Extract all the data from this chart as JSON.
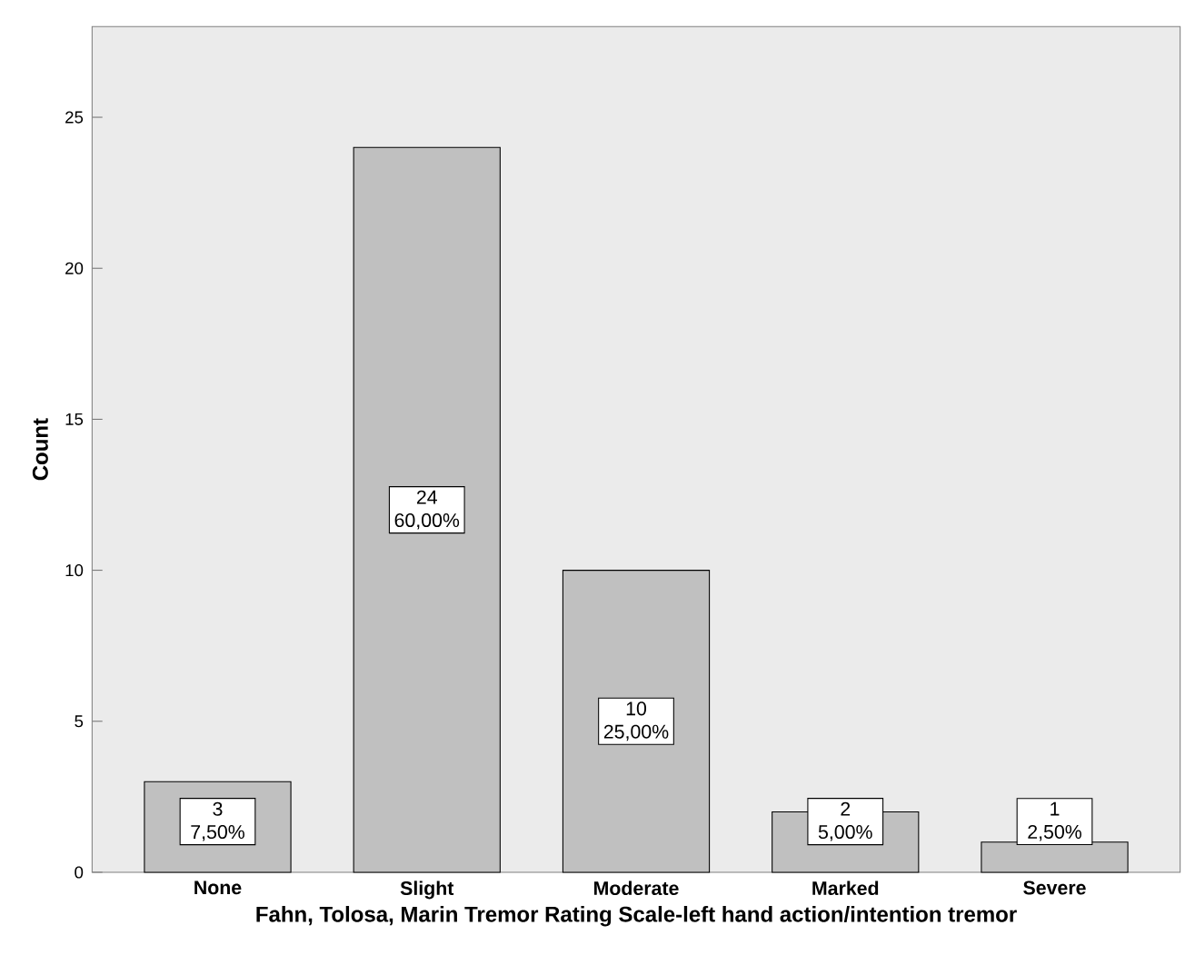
{
  "chart_data": {
    "type": "bar",
    "xlabel": "Fahn, Tolosa, Marin Tremor Rating Scale-left hand action/intention tremor",
    "ylabel": "Count",
    "categories": [
      "None",
      "Slight",
      "Moderate",
      "Marked",
      "Severe"
    ],
    "values": [
      3,
      24,
      10,
      2,
      1
    ],
    "value_labels": [
      "3 7,50%",
      "24 60,00%",
      "10 25,00%",
      "2 5,00%",
      "1 2,50%"
    ],
    "color": "#c0c0c0",
    "ylim": [
      0,
      28
    ],
    "yticks": [
      0,
      5,
      10,
      15,
      20,
      25
    ],
    "grid": false
  }
}
